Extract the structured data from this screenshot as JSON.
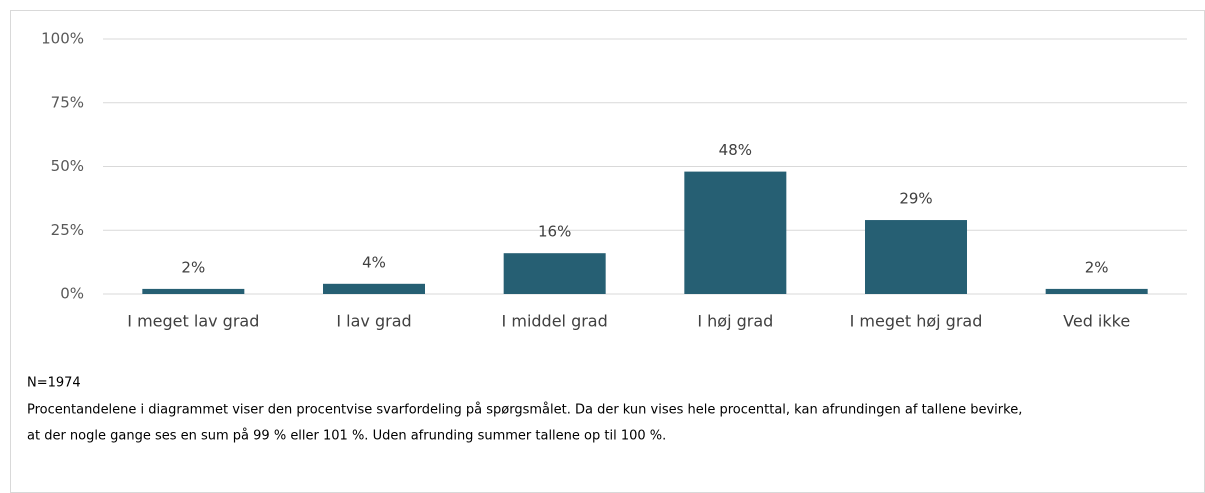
{
  "chart_data": {
    "type": "bar",
    "categories": [
      "I meget lav grad",
      "I lav grad",
      "I middel grad",
      "I høj grad",
      "I meget høj grad",
      "Ved ikke"
    ],
    "values": [
      2,
      4,
      16,
      48,
      29,
      2
    ],
    "value_labels": [
      "2%",
      "4%",
      "16%",
      "48%",
      "29%",
      "2%"
    ],
    "color": "#265f73",
    "ylim": [
      0,
      100
    ],
    "yticks": [
      {
        "value": 0,
        "label": "0%"
      },
      {
        "value": 25,
        "label": "25%"
      },
      {
        "value": 50,
        "label": "50%"
      },
      {
        "value": 75,
        "label": "75%"
      },
      {
        "value": 100,
        "label": "100%"
      }
    ],
    "grid": true,
    "footnote": [
      "N=1974",
      "Procentandelene i diagrammet viser den procentvise svarfordeling på spørgsmålet. Da der kun vises hele procenttal, kan afrundingen af tallene bevirke,",
      "at der nogle gange ses en sum på 99 % eller 101 %. Uden afrunding summer tallene op til 100 %."
    ]
  }
}
